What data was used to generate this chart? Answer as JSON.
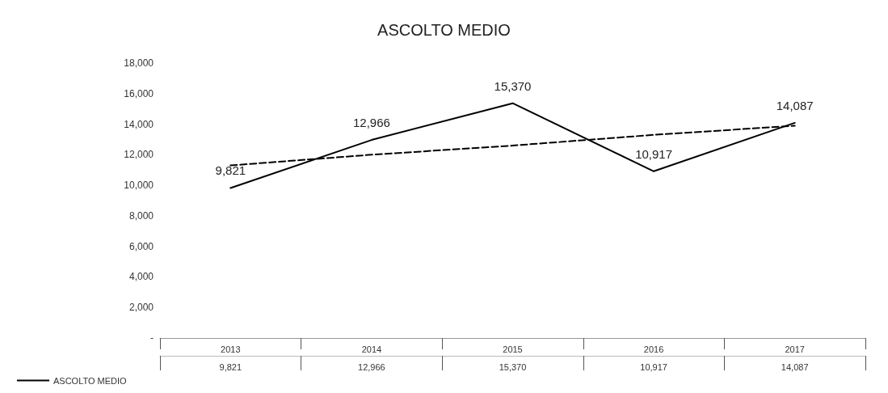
{
  "chart_data": {
    "type": "line",
    "title": "ASCOLTO MEDIO",
    "categories": [
      "2013",
      "2014",
      "2015",
      "2016",
      "2017"
    ],
    "series": [
      {
        "name": "ASCOLTO MEDIO",
        "color": "#000000",
        "values": [
          9821,
          12966,
          15370,
          10917,
          14087
        ],
        "value_labels": [
          "9,821",
          "12,966",
          "15,370",
          "10,917",
          "14,087"
        ],
        "line_style": "solid"
      },
      {
        "type": "line",
        "color": "#000000",
        "values": [
          11300,
          12000,
          12600,
          13300,
          13900
        ],
        "line_style": "dashed"
      }
    ],
    "ylim": [
      0,
      18000
    ],
    "yticks": [
      {
        "value": 0,
        "label": "-"
      },
      {
        "value": 2000,
        "label": "2,000"
      },
      {
        "value": 4000,
        "label": "4,000"
      },
      {
        "value": 6000,
        "label": "6,000"
      },
      {
        "value": 8000,
        "label": "8,000"
      },
      {
        "value": 10000,
        "label": "10,000"
      },
      {
        "value": 12000,
        "label": "12,000"
      },
      {
        "value": 14000,
        "label": "14,000"
      },
      {
        "value": 16000,
        "label": "16,000"
      },
      {
        "value": 18000,
        "label": "18,000"
      }
    ],
    "grid": false,
    "legend": "bottom left",
    "marker": "none"
  }
}
